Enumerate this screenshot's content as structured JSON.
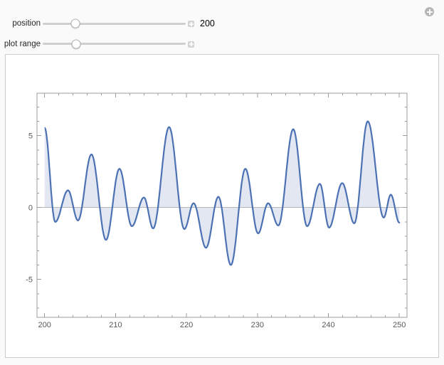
{
  "manipulate": {
    "menu_button": {
      "icon": "circle-plus-icon"
    },
    "controls": [
      {
        "label": "position",
        "value": "200",
        "thumb_percent": 22.7
      },
      {
        "label": "plot range",
        "value": "",
        "thumb_percent": 23.2
      }
    ]
  },
  "chart_data": {
    "type": "area",
    "title": "",
    "xlabel": "",
    "ylabel": "",
    "x_domain": [
      200,
      250
    ],
    "frame_x_range": [
      198.93,
      251.08
    ],
    "frame_y_range": [
      -7.64,
      7.96
    ],
    "x_major_ticks": [
      200,
      210,
      220,
      230,
      240,
      250
    ],
    "x_minor_step": 2,
    "y_major_ticks": [
      -5,
      0,
      5
    ],
    "y_minor_step": 1,
    "grid": false,
    "legend": null,
    "fill_to": "axis",
    "interpolation": "cosine-through-extrema",
    "line_color": "#4d72b4",
    "fill_color": "rgba(93,122,182,0.18)",
    "frame_color": "#9c9c9c",
    "axis_line_color": "#b4b4b4",
    "tick_label_color": "#595959",
    "points": [
      [
        200.0,
        5.55
      ],
      [
        201.5,
        -1.0
      ],
      [
        203.3,
        1.2
      ],
      [
        204.7,
        -0.9
      ],
      [
        206.6,
        3.7
      ],
      [
        208.65,
        -2.25
      ],
      [
        210.55,
        2.7
      ],
      [
        212.3,
        -1.3
      ],
      [
        214.0,
        0.7
      ],
      [
        215.3,
        -1.45
      ],
      [
        217.55,
        5.6
      ],
      [
        219.7,
        -1.5
      ],
      [
        221.0,
        0.3
      ],
      [
        222.75,
        -2.8
      ],
      [
        224.5,
        0.75
      ],
      [
        226.25,
        -4.0
      ],
      [
        228.3,
        2.7
      ],
      [
        230.1,
        -1.8
      ],
      [
        231.5,
        0.3
      ],
      [
        232.95,
        -1.25
      ],
      [
        235.05,
        5.45
      ],
      [
        237.0,
        -1.3
      ],
      [
        238.8,
        1.65
      ],
      [
        240.1,
        -1.4
      ],
      [
        241.95,
        1.7
      ],
      [
        243.65,
        -1.1
      ],
      [
        245.55,
        6.0
      ],
      [
        247.8,
        -0.7
      ],
      [
        248.8,
        0.9
      ],
      [
        250.0,
        -1.05
      ]
    ]
  }
}
